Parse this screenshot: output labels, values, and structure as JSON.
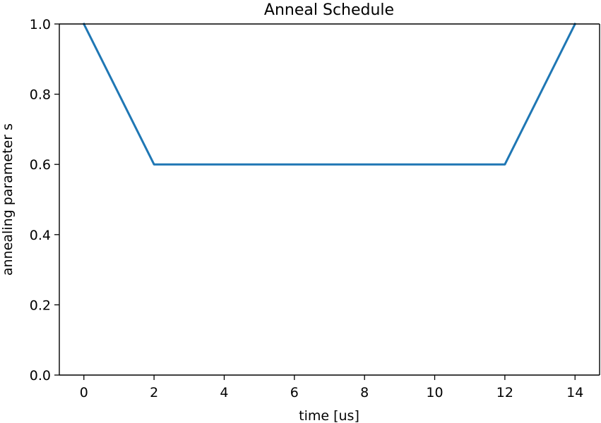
{
  "chart_data": {
    "type": "line",
    "title": "Anneal Schedule",
    "xlabel": "time [us]",
    "ylabel": "annealing parameter s",
    "xlim": [
      -0.7,
      14.7
    ],
    "ylim": [
      0.0,
      1.0
    ],
    "xticks": [
      0,
      2,
      4,
      6,
      8,
      10,
      12,
      14
    ],
    "xtick_labels": [
      "0",
      "2",
      "4",
      "6",
      "8",
      "10",
      "12",
      "14"
    ],
    "yticks": [
      0.0,
      0.2,
      0.4,
      0.6,
      0.8,
      1.0
    ],
    "ytick_labels": [
      "0.0",
      "0.2",
      "0.4",
      "0.6",
      "0.8",
      "1.0"
    ],
    "grid": false,
    "series": [
      {
        "color": "#1f77b4",
        "x": [
          0,
          2,
          12,
          14
        ],
        "y": [
          1.0,
          0.6,
          0.6,
          1.0
        ]
      }
    ]
  }
}
